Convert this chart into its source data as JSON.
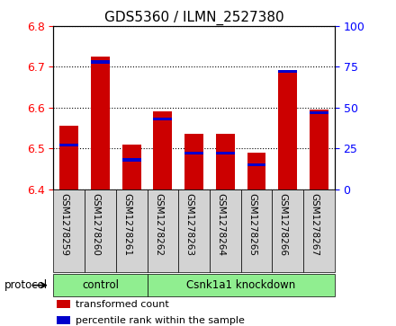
{
  "title": "GDS5360 / ILMN_2527380",
  "samples": [
    "GSM1278259",
    "GSM1278260",
    "GSM1278261",
    "GSM1278262",
    "GSM1278263",
    "GSM1278264",
    "GSM1278265",
    "GSM1278266",
    "GSM1278267"
  ],
  "transformed_counts": [
    6.555,
    6.725,
    6.51,
    6.59,
    6.535,
    6.535,
    6.49,
    6.685,
    6.595
  ],
  "percentile_ranks": [
    27,
    78,
    18,
    43,
    22,
    22,
    15,
    72,
    47
  ],
  "ylim_left": [
    6.4,
    6.8
  ],
  "ylim_right": [
    0,
    100
  ],
  "yticks_left": [
    6.4,
    6.5,
    6.6,
    6.7,
    6.8
  ],
  "yticks_right": [
    0,
    25,
    50,
    75,
    100
  ],
  "bar_color_red": "#cc0000",
  "bar_color_blue": "#0000cc",
  "bg_color": "#ffffff",
  "plot_bg_color": "#ffffff",
  "sample_box_color": "#d3d3d3",
  "protocol_color": "#90ee90",
  "protocol_groups": [
    {
      "label": "control",
      "start": 0,
      "end": 2
    },
    {
      "label": "Csnk1a1 knockdown",
      "start": 3,
      "end": 8
    }
  ],
  "legend_items": [
    {
      "label": "transformed count",
      "color": "#cc0000"
    },
    {
      "label": "percentile rank within the sample",
      "color": "#0000cc"
    }
  ],
  "protocol_label": "protocol",
  "tick_fontsize": 9,
  "title_fontsize": 11,
  "sample_fontsize": 7.5
}
